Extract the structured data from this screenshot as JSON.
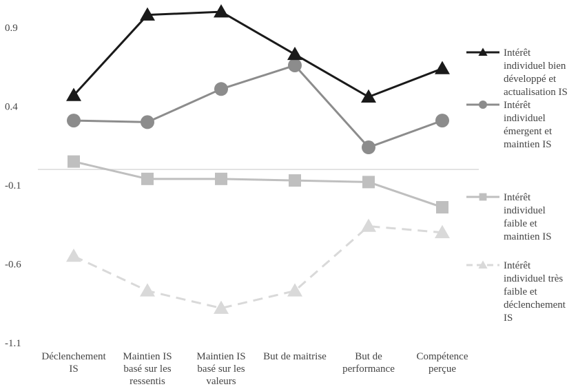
{
  "chart_data": {
    "type": "line",
    "categories": [
      [
        "Déclenchement",
        "IS"
      ],
      [
        "Maintien IS",
        "basé sur les",
        "ressentis"
      ],
      [
        "Maintien IS",
        "basé sur les",
        "valeurs"
      ],
      [
        "But de maitrise"
      ],
      [
        "But de",
        "performance"
      ],
      [
        "Compétence",
        "perçue"
      ]
    ],
    "y_ticks": [
      "0.9",
      "0.4",
      "-0.1",
      "-0.6",
      "-1.1"
    ],
    "ylim": [
      -1.1,
      1.1
    ],
    "zero_line": true,
    "grid": false,
    "legend_position": "right",
    "series": [
      {
        "name": [
          "Intérêt",
          "individuel bien",
          "développé et",
          "actualisation IS"
        ],
        "values": [
          0.47,
          0.98,
          1.0,
          0.73,
          0.46,
          0.64
        ],
        "color": "#1a1a1a",
        "marker": "triangle",
        "dashed": false
      },
      {
        "name": [
          "Intérêt",
          "individuel",
          "émergent et",
          "maintien IS"
        ],
        "values": [
          0.31,
          0.3,
          0.51,
          0.66,
          0.14,
          0.31
        ],
        "color": "#8c8c8c",
        "marker": "circle",
        "dashed": false
      },
      {
        "name": [
          "Intérêt",
          "individuel",
          "faible et",
          "maintien IS"
        ],
        "values": [
          0.05,
          -0.06,
          -0.06,
          -0.07,
          -0.08,
          -0.24
        ],
        "color": "#bfbfbf",
        "marker": "square",
        "dashed": false
      },
      {
        "name": [
          "Intérêt",
          "individuel très",
          "faible et",
          "déclenchement",
          "IS"
        ],
        "values": [
          -0.55,
          -0.77,
          -0.88,
          -0.77,
          -0.36,
          -0.4
        ],
        "color": "#d9d9d9",
        "marker": "triangle",
        "dashed": true
      }
    ]
  }
}
